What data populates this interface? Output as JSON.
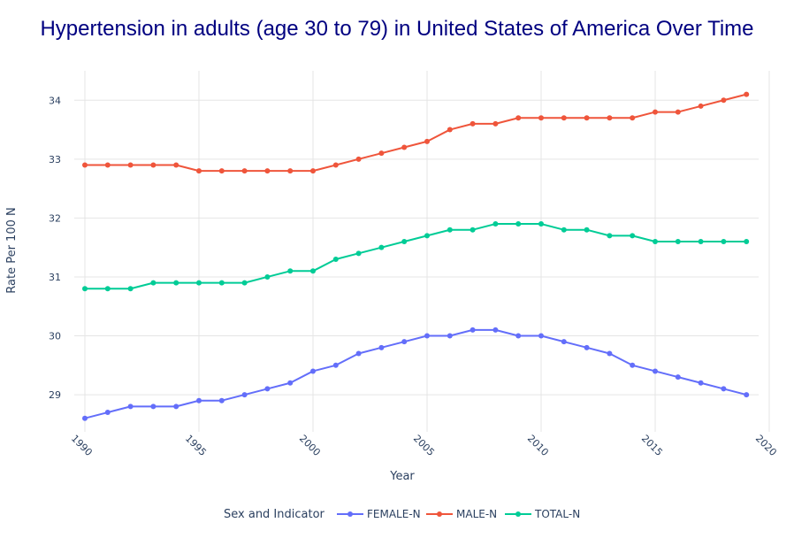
{
  "chart_data": {
    "type": "line",
    "title": "Hypertension in adults (age 30 to 79) in United States of America Over Time",
    "xlabel": "Year",
    "ylabel": "Rate Per 100 N",
    "xlim": [
      1990,
      2020
    ],
    "ylim": [
      28.37,
      34.5
    ],
    "xticks": [
      1990,
      1995,
      2000,
      2005,
      2010,
      2015,
      2020
    ],
    "yticks": [
      29,
      30,
      31,
      32,
      33,
      34
    ],
    "grid": true,
    "legend": {
      "title": "Sex and Indicator",
      "placement": "bottom"
    },
    "x": [
      1990,
      1991,
      1992,
      1993,
      1994,
      1995,
      1996,
      1997,
      1998,
      1999,
      2000,
      2001,
      2002,
      2003,
      2004,
      2005,
      2006,
      2007,
      2008,
      2009,
      2010,
      2011,
      2012,
      2013,
      2014,
      2015,
      2016,
      2017,
      2018,
      2019
    ],
    "series": [
      {
        "name": "FEMALE-N",
        "color": "#636efa",
        "values": [
          28.6,
          28.7,
          28.8,
          28.8,
          28.8,
          28.9,
          28.9,
          29.0,
          29.1,
          29.2,
          29.4,
          29.5,
          29.7,
          29.8,
          29.9,
          30.0,
          30.0,
          30.1,
          30.1,
          30.0,
          30.0,
          29.9,
          29.8,
          29.7,
          29.5,
          29.4,
          29.3,
          29.2,
          29.1,
          29.0
        ]
      },
      {
        "name": "MALE-N",
        "color": "#ef553b",
        "values": [
          32.9,
          32.9,
          32.9,
          32.9,
          32.9,
          32.8,
          32.8,
          32.8,
          32.8,
          32.8,
          32.8,
          32.9,
          33.0,
          33.1,
          33.2,
          33.3,
          33.5,
          33.6,
          33.6,
          33.7,
          33.7,
          33.7,
          33.7,
          33.7,
          33.7,
          33.8,
          33.8,
          33.9,
          34.0,
          34.1
        ]
      },
      {
        "name": "TOTAL-N",
        "color": "#00cc96",
        "values": [
          30.8,
          30.8,
          30.8,
          30.9,
          30.9,
          30.9,
          30.9,
          30.9,
          31.0,
          31.1,
          31.1,
          31.3,
          31.4,
          31.5,
          31.6,
          31.7,
          31.8,
          31.8,
          31.9,
          31.9,
          31.9,
          31.8,
          31.8,
          31.7,
          31.7,
          31.6,
          31.6,
          31.6,
          31.6,
          31.6
        ]
      }
    ]
  }
}
